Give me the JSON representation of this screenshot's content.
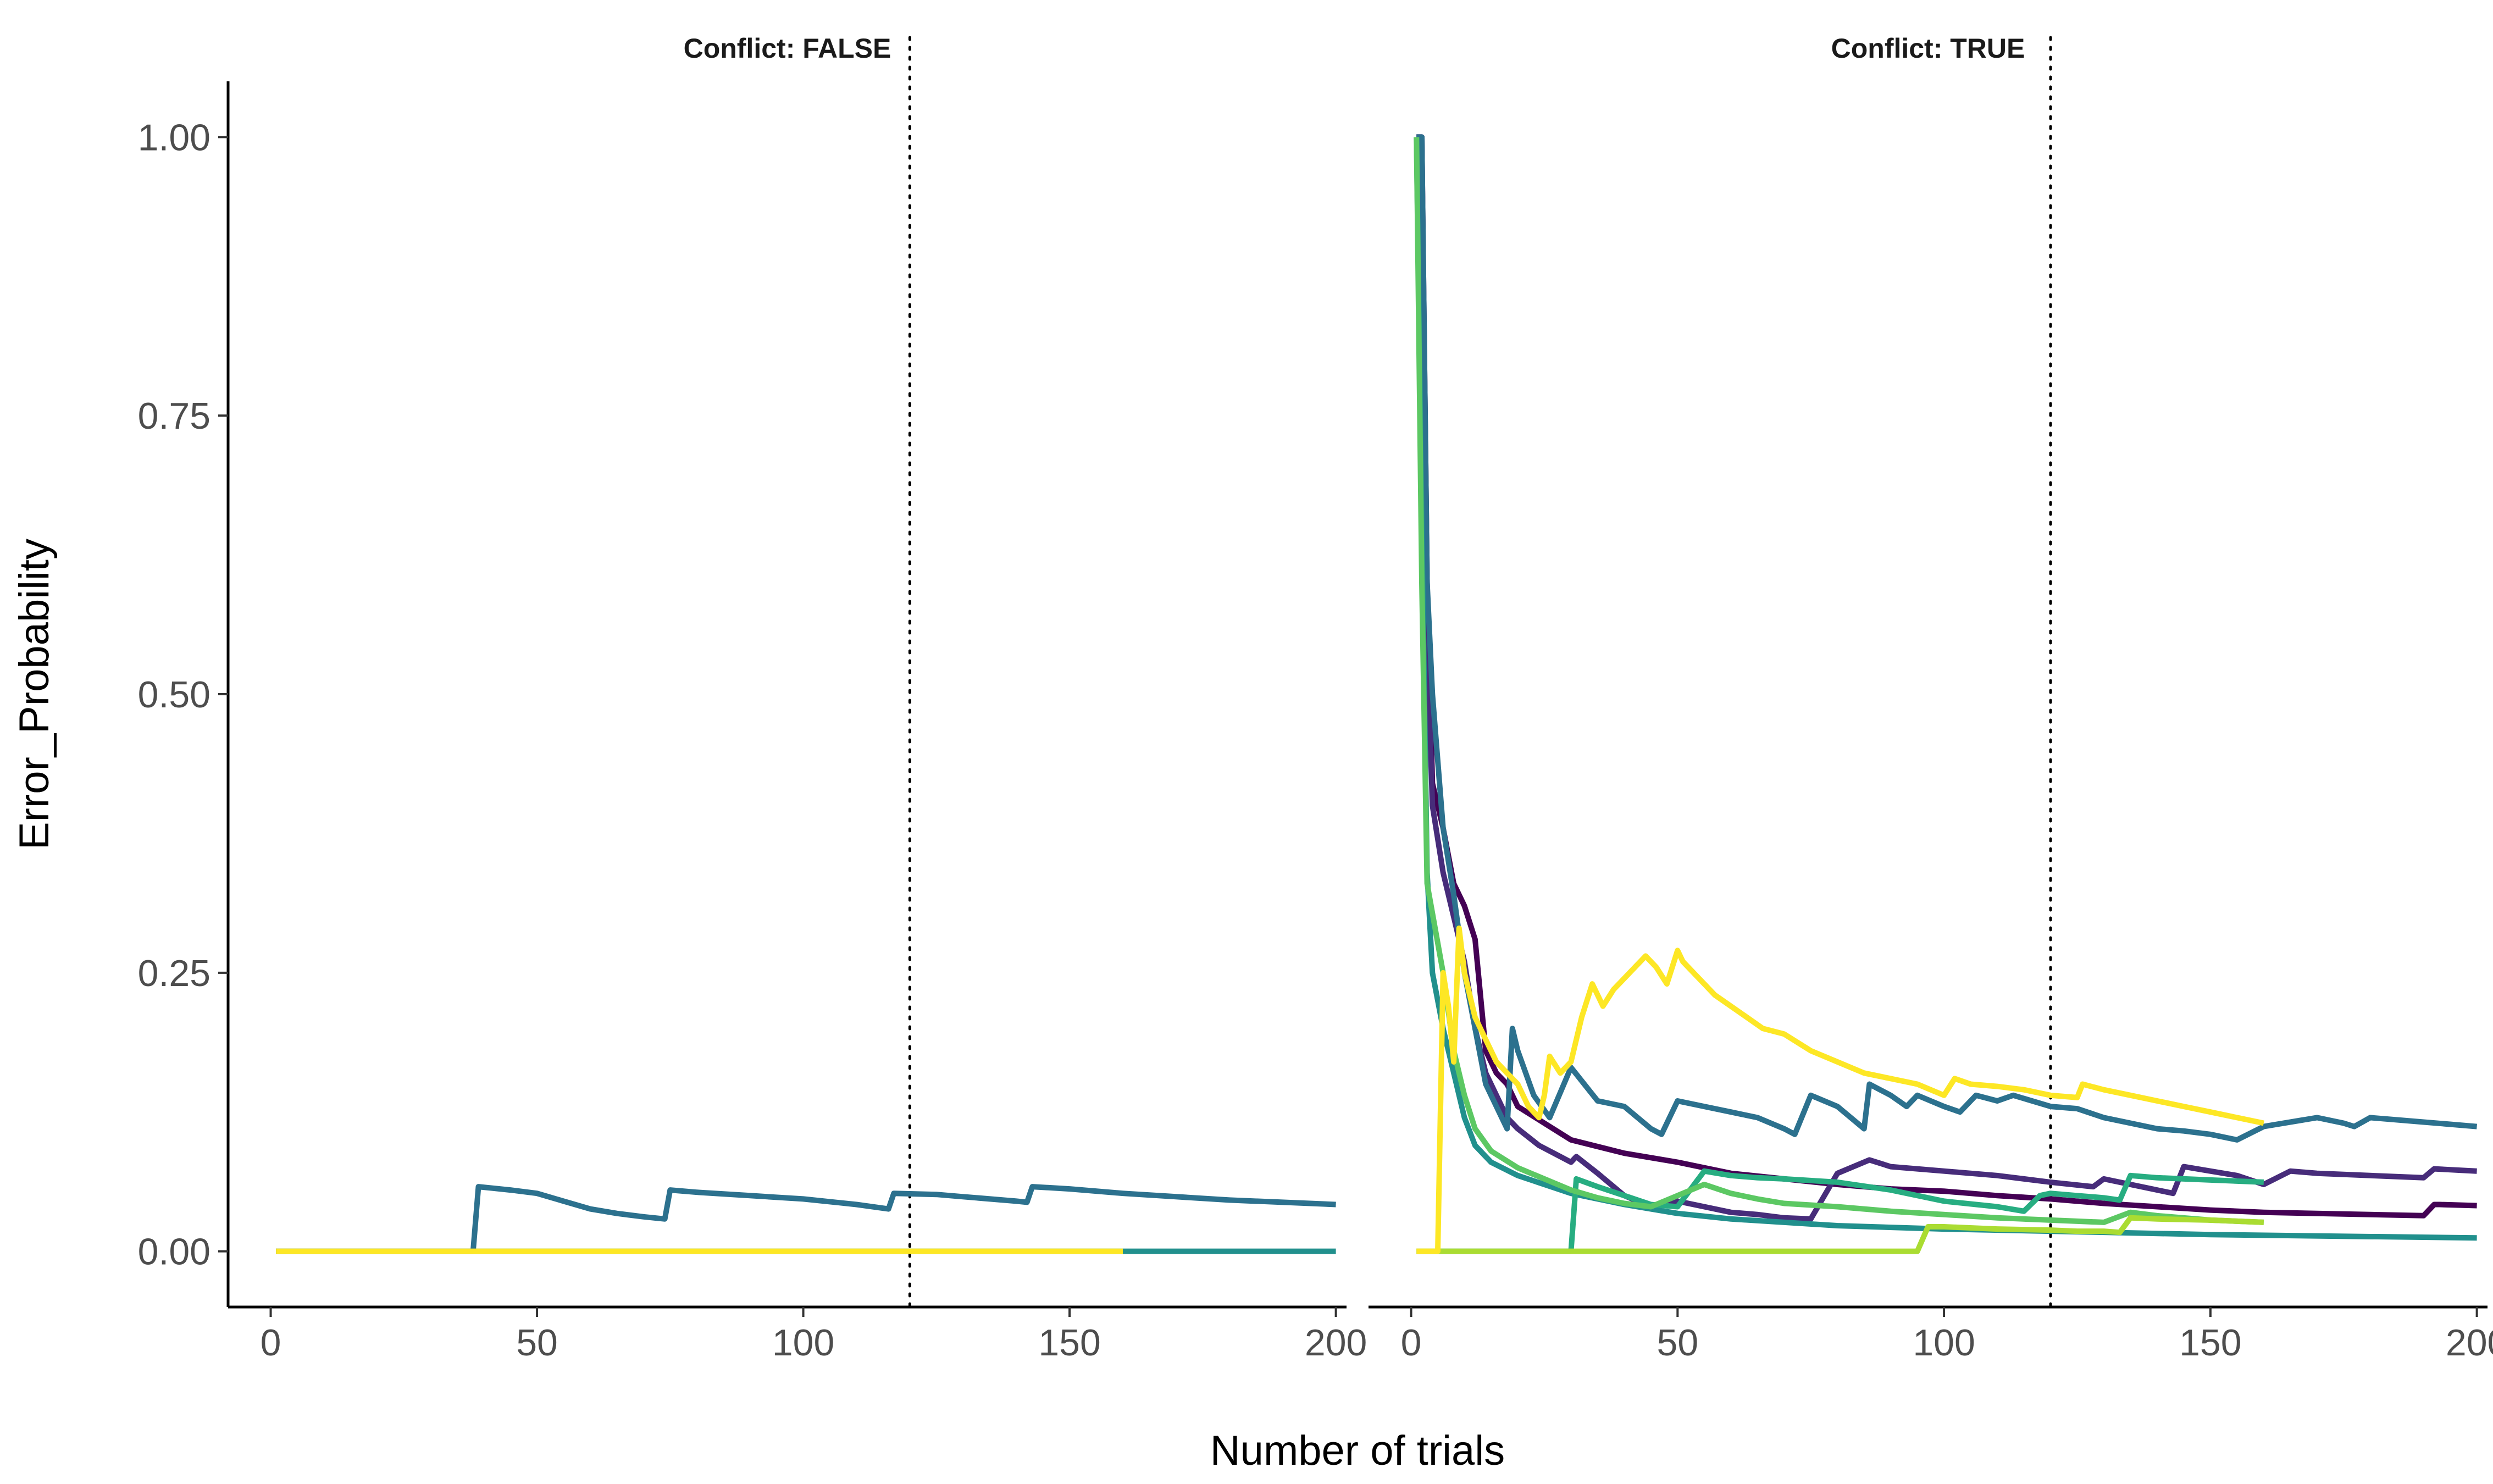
{
  "chart_data": {
    "type": "line",
    "xlabel": "Number of trials",
    "ylabel": "Error_Probability",
    "xlim": [
      -8,
      202
    ],
    "ylim": [
      -0.05,
      1.05
    ],
    "x_ticks": [
      0,
      50,
      100,
      150,
      200
    ],
    "x_tick_labels": [
      "0",
      "50",
      "100",
      "150",
      "200"
    ],
    "y_ticks": [
      0,
      0.25,
      0.5,
      0.75,
      1.0
    ],
    "y_tick_labels": [
      "0.00",
      "0.25",
      "0.50",
      "0.75",
      "1.00"
    ],
    "reference_line_x": 120,
    "grid": false,
    "legend": "none",
    "series_colors": [
      "#440154",
      "#472c7a",
      "#3b518b",
      "#2c718e",
      "#21908d",
      "#27ad81",
      "#5cc863",
      "#aadc32",
      "#fde725"
    ],
    "panels": [
      {
        "title": "Conflict: FALSE",
        "series": [
          {
            "color": "#5cc863",
            "x": [
              1,
              3
            ],
            "y": [
              0,
              0
            ]
          },
          {
            "color": "#21908d",
            "x": [
              1,
              200
            ],
            "y": [
              0,
              0
            ]
          },
          {
            "color": "#2c718e",
            "x": [
              1,
              38,
              39,
              45,
              50,
              55,
              60,
              65,
              70,
              74,
              75,
              80,
              90,
              100,
              110,
              116,
              117,
              125,
              130,
              140,
              142,
              143,
              150,
              160,
              170,
              180,
              190,
              200
            ],
            "y": [
              0,
              0,
              0.058,
              0.055,
              0.052,
              0.045,
              0.038,
              0.034,
              0.031,
              0.029,
              0.055,
              0.053,
              0.05,
              0.047,
              0.042,
              0.038,
              0.052,
              0.051,
              0.049,
              0.045,
              0.044,
              0.058,
              0.056,
              0.052,
              0.049,
              0.046,
              0.044,
              0.042
            ]
          },
          {
            "color": "#fde725",
            "x": [
              1,
              160
            ],
            "y": [
              0,
              0
            ]
          }
        ]
      },
      {
        "title": "Conflict: TRUE",
        "series": [
          {
            "color": "#440154",
            "x": [
              1,
              2,
              3,
              4,
              6,
              8,
              10,
              12,
              14,
              16,
              18,
              20,
              25,
              30,
              40,
              50,
              60,
              70,
              80,
              90,
              100,
              110,
              120,
              130,
              140,
              150,
              160,
              170,
              180,
              190,
              192,
              193,
              200
            ],
            "y": [
              1.0,
              1.0,
              0.6,
              0.42,
              0.38,
              0.33,
              0.31,
              0.28,
              0.18,
              0.16,
              0.15,
              0.13,
              0.115,
              0.1,
              0.088,
              0.08,
              0.07,
              0.065,
              0.06,
              0.056,
              0.054,
              0.05,
              0.047,
              0.043,
              0.04,
              0.037,
              0.035,
              0.034,
              0.033,
              0.032,
              0.042,
              0.042,
              0.041
            ]
          },
          {
            "color": "#472c7a",
            "x": [
              1,
              2,
              3,
              4,
              6,
              8,
              10,
              12,
              14,
              16,
              18,
              20,
              24,
              28,
              30,
              31,
              35,
              40,
              45,
              50,
              55,
              60,
              65,
              70,
              75,
              80,
              86,
              90,
              100,
              110,
              120,
              128,
              130,
              140,
              143,
              145,
              150,
              155,
              160,
              165,
              170,
              180,
              190,
              192,
              200
            ],
            "y": [
              1.0,
              1.0,
              0.55,
              0.4,
              0.34,
              0.3,
              0.26,
              0.2,
              0.16,
              0.14,
              0.12,
              0.11,
              0.095,
              0.085,
              0.08,
              0.085,
              0.07,
              0.05,
              0.04,
              0.045,
              0.04,
              0.035,
              0.033,
              0.03,
              0.029,
              0.07,
              0.082,
              0.076,
              0.072,
              0.068,
              0.062,
              0.058,
              0.065,
              0.055,
              0.052,
              0.076,
              0.072,
              0.068,
              0.06,
              0.072,
              0.07,
              0.068,
              0.066,
              0.074,
              0.072
            ]
          },
          {
            "color": "#2c718e",
            "x": [
              1,
              2,
              3,
              4,
              6,
              8,
              10,
              12,
              14,
              16,
              18,
              19,
              20,
              23,
              26,
              30,
              35,
              40,
              45,
              47,
              50,
              55,
              60,
              65,
              70,
              72,
              75,
              80,
              85,
              86,
              88,
              90,
              93,
              95,
              100,
              103,
              106,
              110,
              113,
              120,
              125,
              130,
              140,
              145,
              150,
              155,
              160,
              170,
              175,
              177,
              180,
              190,
              200
            ],
            "y": [
              1.0,
              1.0,
              0.6,
              0.5,
              0.38,
              0.32,
              0.25,
              0.2,
              0.15,
              0.13,
              0.11,
              0.2,
              0.18,
              0.14,
              0.12,
              0.165,
              0.135,
              0.13,
              0.11,
              0.105,
              0.135,
              0.13,
              0.125,
              0.12,
              0.11,
              0.105,
              0.14,
              0.13,
              0.11,
              0.15,
              0.145,
              0.14,
              0.13,
              0.14,
              0.13,
              0.125,
              0.14,
              0.135,
              0.14,
              0.13,
              0.128,
              0.12,
              0.11,
              0.108,
              0.105,
              0.1,
              0.112,
              0.12,
              0.115,
              0.112,
              0.12,
              0.116,
              0.112
            ]
          },
          {
            "color": "#21908d",
            "x": [
              1,
              2,
              3,
              4,
              6,
              8,
              10,
              12,
              15,
              20,
              25,
              30,
              40,
              50,
              60,
              70,
              80,
              100,
              120,
              150,
              200
            ],
            "y": [
              1.0,
              0.65,
              0.34,
              0.25,
              0.2,
              0.16,
              0.12,
              0.095,
              0.08,
              0.068,
              0.06,
              0.052,
              0.042,
              0.034,
              0.029,
              0.026,
              0.023,
              0.02,
              0.018,
              0.015,
              0.012
            ]
          },
          {
            "color": "#27ad81",
            "x": [
              1,
              30,
              31,
              35,
              40,
              45,
              50,
              55,
              60,
              65,
              70,
              80,
              90,
              100,
              110,
              115,
              118,
              120,
              125,
              130,
              133,
              135,
              140,
              150,
              160
            ],
            "y": [
              0,
              0,
              0.065,
              0.058,
              0.05,
              0.042,
              0.04,
              0.072,
              0.068,
              0.066,
              0.065,
              0.062,
              0.055,
              0.045,
              0.04,
              0.036,
              0.05,
              0.052,
              0.05,
              0.048,
              0.046,
              0.068,
              0.066,
              0.064,
              0.062
            ]
          },
          {
            "color": "#5cc863",
            "x": [
              1,
              2,
              3,
              6,
              8,
              10,
              12,
              15,
              20,
              25,
              30,
              35,
              40,
              45,
              50,
              55,
              60,
              65,
              70,
              80,
              90,
              100,
              110,
              120,
              125,
              130,
              135,
              140,
              145,
              150,
              160
            ],
            "y": [
              1.0,
              0.6,
              0.33,
              0.25,
              0.18,
              0.14,
              0.11,
              0.09,
              0.075,
              0.065,
              0.055,
              0.048,
              0.043,
              0.04,
              0.05,
              0.06,
              0.052,
              0.047,
              0.043,
              0.04,
              0.036,
              0.033,
              0.03,
              0.028,
              0.027,
              0.026,
              0.035,
              0.032,
              0.03,
              0.028,
              0.026
            ]
          },
          {
            "color": "#aadc32",
            "x": [
              1,
              95,
              97,
              100,
              110,
              120,
              125,
              130,
              133,
              135,
              140,
              150,
              160
            ],
            "y": [
              0,
              0,
              0.022,
              0.022,
              0.02,
              0.019,
              0.018,
              0.018,
              0.017,
              0.03,
              0.029,
              0.028,
              0.026
            ]
          },
          {
            "color": "#fde725",
            "x": [
              1,
              5,
              6,
              7,
              8,
              9,
              10,
              11,
              12,
              14,
              16,
              18,
              20,
              22,
              24,
              25,
              26,
              28,
              30,
              32,
              34,
              36,
              38,
              40,
              42,
              44,
              46,
              48,
              50,
              51,
              53,
              55,
              57,
              60,
              63,
              66,
              70,
              75,
              80,
              85,
              90,
              95,
              100,
              102,
              105,
              110,
              115,
              120,
              125,
              126,
              130,
              135,
              140,
              145,
              150,
              155,
              160
            ],
            "y": [
              0,
              0,
              0.25,
              0.22,
              0.17,
              0.29,
              0.25,
              0.23,
              0.21,
              0.19,
              0.17,
              0.16,
              0.15,
              0.13,
              0.12,
              0.14,
              0.175,
              0.16,
              0.17,
              0.21,
              0.24,
              0.22,
              0.235,
              0.245,
              0.255,
              0.265,
              0.255,
              0.24,
              0.27,
              0.26,
              0.25,
              0.24,
              0.23,
              0.22,
              0.21,
              0.2,
              0.195,
              0.18,
              0.17,
              0.16,
              0.155,
              0.15,
              0.14,
              0.155,
              0.15,
              0.148,
              0.145,
              0.14,
              0.138,
              0.15,
              0.145,
              0.14,
              0.135,
              0.13,
              0.125,
              0.12,
              0.115
            ]
          }
        ]
      }
    ]
  }
}
